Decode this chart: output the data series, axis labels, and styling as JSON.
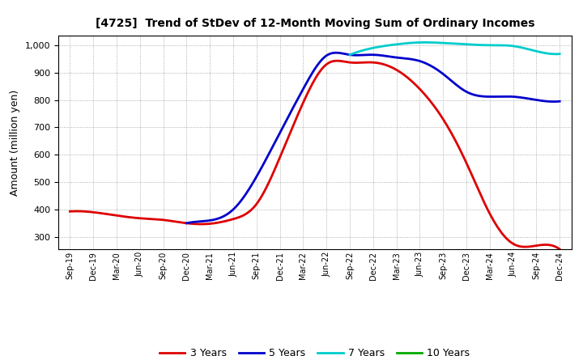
{
  "title": "[4725]  Trend of StDev of 12-Month Moving Sum of Ordinary Incomes",
  "ylabel": "Amount (million yen)",
  "background_color": "#ffffff",
  "grid_color": "#999999",
  "tick_labels": [
    "Sep-19",
    "Dec-19",
    "Mar-20",
    "Jun-20",
    "Sep-20",
    "Dec-20",
    "Mar-21",
    "Jun-21",
    "Sep-21",
    "Dec-21",
    "Mar-22",
    "Jun-22",
    "Sep-22",
    "Dec-22",
    "Mar-23",
    "Jun-23",
    "Sep-23",
    "Dec-23",
    "Mar-24",
    "Jun-24",
    "Sep-24",
    "Dec-24"
  ],
  "ylim": [
    255,
    1035
  ],
  "yticks": [
    300,
    400,
    500,
    600,
    700,
    800,
    900,
    1000
  ],
  "series_3y": {
    "color": "#dd0000",
    "x": [
      0,
      1,
      2,
      3,
      4,
      5,
      6,
      7,
      8,
      9,
      10,
      11,
      12,
      13,
      14,
      15,
      16,
      17,
      18,
      19,
      20,
      21
    ],
    "y": [
      393,
      390,
      378,
      368,
      362,
      350,
      348,
      365,
      420,
      590,
      790,
      930,
      937,
      937,
      910,
      840,
      730,
      570,
      385,
      275,
      268,
      255
    ]
  },
  "series_5y": {
    "color": "#0000cc",
    "x": [
      5,
      6,
      7,
      8,
      9,
      10,
      11,
      12,
      13,
      14,
      15,
      16,
      17,
      18,
      19,
      20,
      21
    ],
    "y": [
      350,
      360,
      400,
      520,
      680,
      840,
      962,
      965,
      965,
      955,
      942,
      895,
      830,
      812,
      812,
      800,
      795
    ]
  },
  "series_7y": {
    "color": "#00cccc",
    "x": [
      12,
      13,
      14,
      15,
      16,
      17,
      18,
      19,
      20,
      21
    ],
    "y": [
      965,
      990,
      1003,
      1010,
      1008,
      1003,
      1000,
      997,
      978,
      968
    ]
  },
  "series_10y": {
    "color": "#00aa00",
    "x": [],
    "y": []
  },
  "legend_colors": [
    "#dd0000",
    "#0000cc",
    "#00cccc",
    "#00aa00"
  ],
  "legend_labels": [
    "3 Years",
    "5 Years",
    "7 Years",
    "10 Years"
  ]
}
